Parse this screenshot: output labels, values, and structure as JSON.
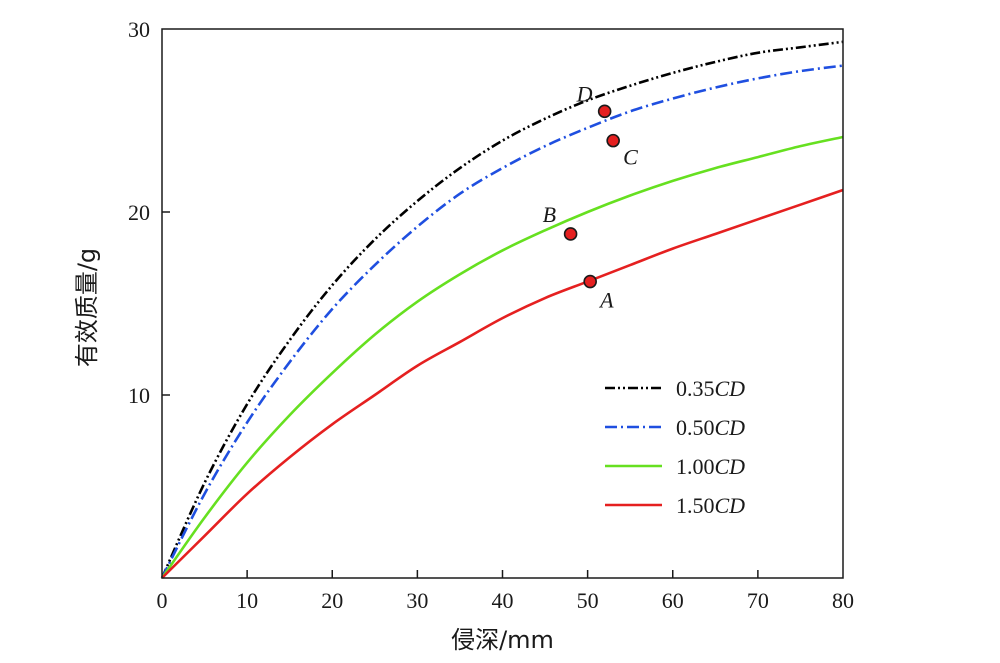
{
  "chart_data": {
    "type": "line",
    "xlabel": "侵深/mm",
    "ylabel": "有效质量/g",
    "xlim": [
      0,
      80
    ],
    "ylim": [
      0,
      30
    ],
    "x_ticks": [
      "0",
      "10",
      "20",
      "30",
      "40",
      "50",
      "60",
      "70",
      "80"
    ],
    "y_ticks": [
      "10",
      "20",
      "30"
    ],
    "grid": false,
    "legend_position": "bottom-right",
    "x": [
      0,
      5,
      10,
      15,
      20,
      25,
      30,
      35,
      40,
      45,
      50,
      55,
      60,
      65,
      70,
      75,
      80
    ],
    "series": [
      {
        "name": "0.35CD",
        "legend_value": "0.35",
        "legend_unit": "CD",
        "color": "#000000",
        "style": "dash-dot-dot",
        "values": [
          0,
          5.2,
          9.5,
          13.0,
          16.0,
          18.5,
          20.6,
          22.4,
          23.9,
          25.1,
          26.1,
          26.9,
          27.6,
          28.2,
          28.7,
          29.0,
          29.3
        ]
      },
      {
        "name": "0.50CD",
        "legend_value": "0.50",
        "legend_unit": "CD",
        "color": "#1f4fe0",
        "style": "dash-dot",
        "values": [
          0,
          4.6,
          8.5,
          11.8,
          14.7,
          17.1,
          19.2,
          21.0,
          22.4,
          23.6,
          24.6,
          25.5,
          26.2,
          26.8,
          27.3,
          27.7,
          28.0
        ]
      },
      {
        "name": "1.00CD",
        "legend_value": "1.00",
        "legend_unit": "CD",
        "color": "#66e020",
        "style": "solid",
        "values": [
          0,
          3.3,
          6.3,
          8.9,
          11.2,
          13.3,
          15.1,
          16.6,
          17.9,
          19.0,
          20.0,
          20.9,
          21.7,
          22.4,
          23.0,
          23.6,
          24.1
        ]
      },
      {
        "name": "1.50CD",
        "legend_value": "1.50",
        "legend_unit": "CD",
        "color": "#e52020",
        "style": "solid",
        "values": [
          0,
          2.3,
          4.6,
          6.6,
          8.4,
          10.0,
          11.6,
          12.9,
          14.2,
          15.3,
          16.2,
          17.1,
          18.0,
          18.8,
          19.6,
          20.4,
          21.2
        ]
      }
    ],
    "points": [
      {
        "label": "A",
        "x": 50.3,
        "y": 16.2,
        "color": "#e52020"
      },
      {
        "label": "B",
        "x": 48,
        "y": 18.8,
        "color": "#e52020"
      },
      {
        "label": "C",
        "x": 53,
        "y": 23.9,
        "color": "#e52020"
      },
      {
        "label": "D",
        "x": 52,
        "y": 25.5,
        "color": "#e52020"
      }
    ]
  }
}
